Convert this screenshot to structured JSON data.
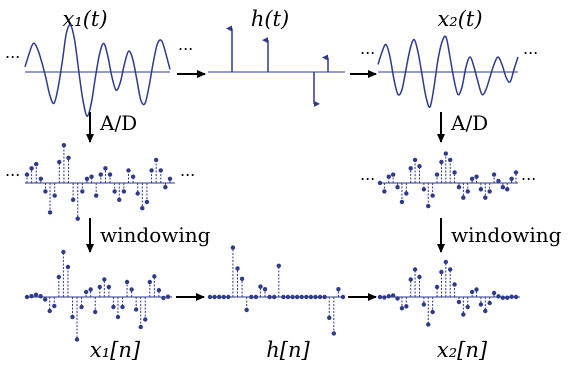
{
  "labels": {
    "x1_t": "x₁(t)",
    "h_t": "h(t)",
    "x2_t": "x₂(t)",
    "x1_n": "x₁[n]",
    "h_n": "h[n]",
    "x2_n": "x₂[n]",
    "ad_left": "A/D",
    "ad_right": "A/D",
    "win_left": "windowing",
    "win_right": "windowing",
    "ellipsis": "..."
  },
  "colors": {
    "signal": "#2e3a8c",
    "axis": "#2e3a8c",
    "arrow": "#000000"
  },
  "signals": {
    "x1_cont": [
      0.1,
      0.35,
      0.55,
      0.45,
      0.2,
      -0.1,
      -0.45,
      -0.6,
      -0.3,
      0.2,
      0.75,
      0.9,
      0.6,
      0.0,
      -0.55,
      -0.85,
      -0.6,
      -0.1,
      0.35,
      0.55,
      0.3,
      -0.1,
      -0.35,
      -0.2,
      0.15,
      0.4,
      0.25,
      -0.15,
      -0.55,
      -0.6,
      -0.25,
      0.2,
      0.55,
      0.6,
      0.35,
      0.05
    ],
    "h_impulses": [
      0.75,
      0.55,
      0.0,
      -0.55,
      0.25
    ],
    "x2_cont": [
      0.15,
      0.4,
      0.55,
      0.3,
      -0.15,
      -0.45,
      -0.35,
      0.05,
      0.45,
      0.65,
      0.4,
      -0.05,
      -0.5,
      -0.7,
      -0.3,
      0.25,
      0.6,
      0.7,
      0.3,
      -0.15,
      -0.45,
      -0.3,
      0.1,
      0.3,
      0.1,
      -0.2,
      -0.45,
      -0.35,
      -0.1,
      0.15,
      0.3,
      0.15,
      -0.1,
      -0.2,
      0.05,
      0.3
    ],
    "x1_disc": [
      0.2,
      0.35,
      0.45,
      0.1,
      -0.2,
      -0.7,
      -0.3,
      0.5,
      0.9,
      0.6,
      -0.4,
      -0.85,
      -0.2,
      0.1,
      0.15,
      -0.3,
      0.2,
      0.35,
      0.2,
      -0.2,
      -0.4,
      -0.2,
      0.3,
      0.15,
      -0.25,
      -0.6,
      -0.45,
      0.3,
      0.55,
      0.3,
      -0.1,
      0.1
    ],
    "h_disc": [
      0.0,
      0.0,
      0.0,
      0.0,
      0.0,
      0.95,
      0.55,
      0.35,
      -0.25,
      0.0,
      0.0,
      0.2,
      0.15,
      0.0,
      0.0,
      0.6,
      0.0,
      0.0,
      0.0,
      0.0,
      0.0,
      0.0,
      0.0,
      0.0,
      0.0,
      0.0,
      -0.4,
      -0.7,
      0.15,
      0.0
    ],
    "x2_disc": [
      0.0,
      -0.2,
      0.15,
      0.2,
      -0.1,
      -0.45,
      -0.25,
      0.35,
      0.55,
      0.4,
      -0.15,
      -0.55,
      -0.3,
      0.2,
      0.5,
      0.7,
      0.55,
      0.25,
      -0.1,
      -0.35,
      -0.2,
      0.1,
      0.15,
      -0.15,
      -0.35,
      -0.2,
      0.2,
      0.05,
      -0.1,
      -0.15,
      0.1,
      0.25
    ]
  },
  "windows": {
    "x1": [
      0.0,
      0.05,
      0.1,
      0.15,
      0.25,
      0.4,
      0.6,
      0.8,
      1,
      1,
      1,
      1,
      1,
      1,
      1,
      1,
      1,
      1,
      1,
      1,
      1,
      1,
      1,
      1,
      1,
      1,
      1,
      1,
      0.75,
      0.45,
      0.2,
      0.05
    ],
    "x2": [
      0.0,
      0.05,
      0.1,
      0.15,
      0.3,
      0.5,
      0.75,
      1,
      1,
      1,
      1,
      1,
      1,
      1,
      1,
      1,
      1,
      1,
      1,
      1,
      1,
      1,
      1,
      1,
      0.8,
      0.6,
      0.4,
      0.25,
      0.15,
      0.1,
      0.05,
      0.0
    ]
  }
}
